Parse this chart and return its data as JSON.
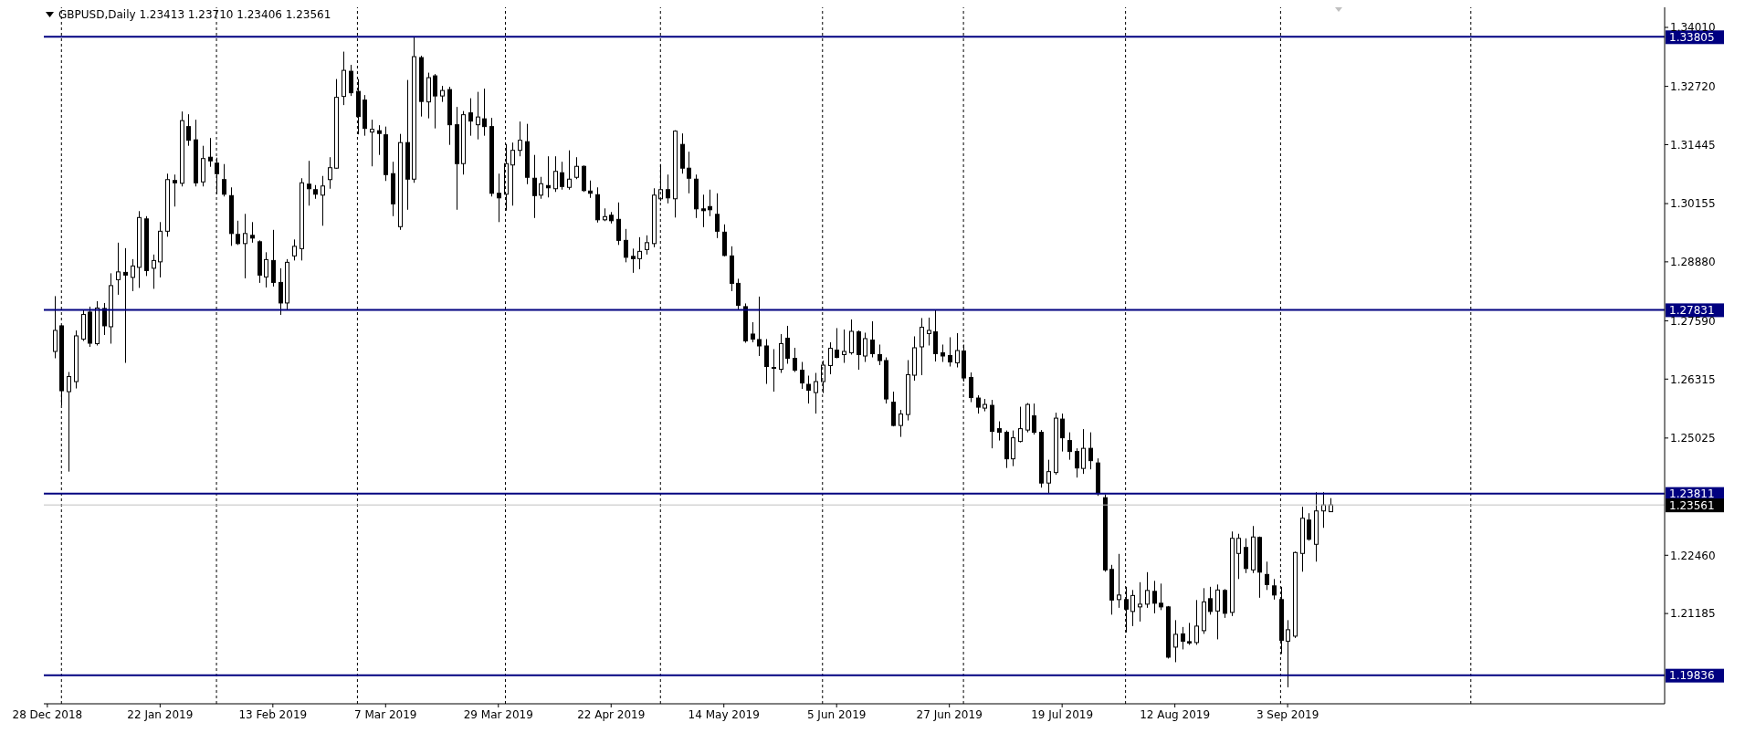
{
  "chart_data": {
    "type": "candlestick",
    "title": "GBPUSD,Daily 1.23413 1.23710 1.23406 1.23561",
    "categories": [
      "28 Dec 2018",
      null,
      null,
      null,
      null,
      null,
      null,
      null,
      null,
      null,
      null,
      null,
      null,
      null,
      null,
      null,
      "22 Jan 2019",
      null,
      null,
      null,
      null,
      null,
      null,
      null,
      null,
      null,
      null,
      null,
      null,
      null,
      null,
      null,
      "13 Feb 2019",
      null,
      null,
      null,
      null,
      null,
      null,
      null,
      null,
      null,
      null,
      null,
      null,
      null,
      null,
      null,
      "7 Mar 2019",
      null,
      null,
      null,
      null,
      null,
      null,
      null,
      null,
      null,
      null,
      null,
      null,
      null,
      null,
      null,
      "29 Mar 2019",
      null,
      null,
      null,
      null,
      null,
      null,
      null,
      null,
      null,
      null,
      null,
      null,
      null,
      null,
      null,
      "22 Apr 2019",
      null,
      null,
      null,
      null,
      null,
      null,
      null,
      null,
      null,
      null,
      null,
      null,
      null,
      null,
      null,
      "14 May 2019",
      null,
      null,
      null,
      null,
      null,
      null,
      null,
      null,
      null,
      null,
      null,
      null,
      null,
      null,
      null,
      "5 Jun 2019",
      null,
      null,
      null,
      null,
      null,
      null,
      null,
      null,
      null,
      null,
      null,
      null,
      null,
      null,
      null,
      "27 Jun 2019",
      null,
      null,
      null,
      null,
      null,
      null,
      null,
      null,
      null,
      null,
      null,
      null,
      null,
      null,
      null,
      "19 Jul 2019",
      null,
      null,
      null,
      null,
      null,
      null,
      null,
      null,
      null,
      null,
      null,
      null,
      null,
      null,
      null,
      "12 Aug 2019",
      null,
      null,
      null,
      null,
      null,
      null,
      null,
      null,
      null,
      null,
      null,
      null,
      null,
      null,
      null,
      "3 Sep 2019",
      null,
      null,
      null,
      null,
      null,
      null,
      null,
      null,
      null,
      null,
      null,
      null,
      null,
      null,
      null,
      null,
      null,
      null,
      null,
      null,
      null,
      null,
      null,
      null,
      null,
      null,
      null,
      null,
      null,
      null,
      null,
      null,
      null,
      null,
      null,
      null,
      null,
      null,
      null,
      null,
      null,
      null,
      null,
      null,
      null,
      null,
      null,
      null,
      null,
      null,
      null,
      null,
      null
    ],
    "ohlc": [
      null,
      [
        1.2692,
        1.2813,
        1.2677,
        1.2738
      ],
      [
        1.2748,
        1.275,
        1.2574,
        1.2606
      ],
      [
        1.2604,
        1.2647,
        1.2429,
        1.2637
      ],
      [
        1.2626,
        1.2738,
        1.2611,
        1.2726
      ],
      [
        1.2719,
        1.2783,
        1.2715,
        1.2773
      ],
      [
        1.2778,
        1.279,
        1.2702,
        1.271
      ],
      [
        1.2709,
        1.2802,
        1.2705,
        1.2787
      ],
      [
        1.2786,
        1.2798,
        1.2728,
        1.2748
      ],
      [
        1.2746,
        1.2863,
        1.2709,
        1.2836
      ],
      [
        1.2849,
        1.293,
        1.2816,
        1.2866
      ],
      [
        1.2865,
        1.2918,
        1.2667,
        1.2859
      ],
      [
        1.2854,
        1.2894,
        1.2824,
        1.2879
      ],
      [
        1.2876,
        1.2999,
        1.2831,
        1.2985
      ],
      [
        1.2982,
        1.2988,
        1.2857,
        1.2869
      ],
      [
        1.2874,
        1.2904,
        1.2829,
        1.2891
      ],
      [
        1.2888,
        1.2975,
        1.2854,
        1.2955
      ],
      [
        1.2955,
        1.3081,
        1.2943,
        1.3068
      ],
      [
        1.3066,
        1.3079,
        1.3009,
        1.3061
      ],
      [
        1.306,
        1.3217,
        1.3053,
        1.3197
      ],
      [
        1.3184,
        1.3211,
        1.3142,
        1.3154
      ],
      [
        1.3155,
        1.3199,
        1.3053,
        1.3061
      ],
      [
        1.3063,
        1.3142,
        1.3053,
        1.3114
      ],
      [
        1.3117,
        1.3159,
        1.3096,
        1.3109
      ],
      [
        1.3104,
        1.3116,
        1.3036,
        1.3081
      ],
      [
        1.3068,
        1.3102,
        1.3031,
        1.3036
      ],
      [
        1.3033,
        1.3051,
        1.2923,
        1.295
      ],
      [
        1.2948,
        1.2978,
        1.2925,
        1.2928
      ],
      [
        1.2928,
        1.2993,
        1.2852,
        1.295
      ],
      [
        1.2946,
        1.2975,
        1.293,
        1.294
      ],
      [
        1.2932,
        1.2935,
        1.2842,
        1.2859
      ],
      [
        1.2855,
        1.2909,
        1.2832,
        1.2893
      ],
      [
        1.2891,
        1.2958,
        1.2834,
        1.2843
      ],
      [
        1.2843,
        1.2874,
        1.2772,
        1.2798
      ],
      [
        1.2798,
        1.2894,
        1.2782,
        1.2887
      ],
      [
        1.2901,
        1.2937,
        1.2891,
        1.2922
      ],
      [
        1.2917,
        1.3071,
        1.2891,
        1.3061
      ],
      [
        1.3058,
        1.3109,
        1.3011,
        1.3048
      ],
      [
        1.3046,
        1.3056,
        1.3026,
        1.3036
      ],
      [
        1.3034,
        1.3076,
        1.2967,
        1.3054
      ],
      [
        1.3068,
        1.3117,
        1.3048,
        1.3094
      ],
      [
        1.3093,
        1.3288,
        1.3092,
        1.3248
      ],
      [
        1.325,
        1.3348,
        1.3231,
        1.3307
      ],
      [
        1.3305,
        1.3319,
        1.3251,
        1.3258
      ],
      [
        1.3261,
        1.3288,
        1.3167,
        1.3206
      ],
      [
        1.3242,
        1.3253,
        1.3164,
        1.318
      ],
      [
        1.3172,
        1.3199,
        1.3097,
        1.3178
      ],
      [
        1.3175,
        1.3187,
        1.3122,
        1.3169
      ],
      [
        1.3166,
        1.3184,
        1.3065,
        1.3079
      ],
      [
        1.3081,
        1.3107,
        1.2988,
        1.3015
      ],
      [
        1.2965,
        1.3168,
        1.2958,
        1.3149
      ],
      [
        1.3149,
        1.3286,
        1.3002,
        1.3069
      ],
      [
        1.3069,
        1.3381,
        1.3061,
        1.3337
      ],
      [
        1.3335,
        1.3339,
        1.3206,
        1.3239
      ],
      [
        1.3238,
        1.3302,
        1.3202,
        1.3291
      ],
      [
        1.3295,
        1.3299,
        1.318,
        1.3251
      ],
      [
        1.3251,
        1.3273,
        1.3238,
        1.3263
      ],
      [
        1.3265,
        1.3271,
        1.3144,
        1.3188
      ],
      [
        1.3188,
        1.3227,
        1.3002,
        1.3103
      ],
      [
        1.3103,
        1.3218,
        1.3079,
        1.321
      ],
      [
        1.3214,
        1.3246,
        1.3164,
        1.3196
      ],
      [
        1.3188,
        1.326,
        1.3156,
        1.3205
      ],
      [
        1.3201,
        1.3267,
        1.3164,
        1.3184
      ],
      [
        1.3184,
        1.3203,
        1.3031,
        1.3038
      ],
      [
        1.3038,
        1.3081,
        1.2975,
        1.3028
      ],
      [
        1.3036,
        1.3146,
        1.3,
        1.3103
      ],
      [
        1.31,
        1.3149,
        1.3011,
        1.3132
      ],
      [
        1.3132,
        1.3195,
        1.3119,
        1.3154
      ],
      [
        1.3151,
        1.319,
        1.3058,
        1.3073
      ],
      [
        1.3071,
        1.3122,
        1.2984,
        1.3033
      ],
      [
        1.3034,
        1.3074,
        1.3026,
        1.3059
      ],
      [
        1.3055,
        1.3119,
        1.3029,
        1.305
      ],
      [
        1.3048,
        1.3119,
        1.3041,
        1.3086
      ],
      [
        1.3083,
        1.3107,
        1.3046,
        1.3053
      ],
      [
        1.3051,
        1.3132,
        1.3046,
        1.3069
      ],
      [
        1.3073,
        1.3117,
        1.3069,
        1.3097
      ],
      [
        1.3097,
        1.3099,
        1.3041,
        1.3044
      ],
      [
        1.3043,
        1.3066,
        1.3028,
        1.3038
      ],
      [
        1.3035,
        1.3051,
        1.2974,
        1.298
      ],
      [
        1.298,
        1.3005,
        1.2977,
        1.2987
      ],
      [
        1.299,
        1.2997,
        1.2972,
        1.2978
      ],
      [
        1.2981,
        1.3018,
        1.2925,
        1.2935
      ],
      [
        1.2935,
        1.296,
        1.2887,
        1.2898
      ],
      [
        1.29,
        1.2917,
        1.2864,
        1.2895
      ],
      [
        1.2895,
        1.2942,
        1.2872,
        1.2911
      ],
      [
        1.2915,
        1.2946,
        1.2904,
        1.293
      ],
      [
        1.2928,
        1.3049,
        1.292,
        1.3034
      ],
      [
        1.3026,
        1.3102,
        1.3021,
        1.3046
      ],
      [
        1.3046,
        1.3079,
        1.3016,
        1.3028
      ],
      [
        1.3026,
        1.3176,
        1.2985,
        1.3174
      ],
      [
        1.3145,
        1.3169,
        1.3081,
        1.3093
      ],
      [
        1.3093,
        1.3129,
        1.3038,
        1.3071
      ],
      [
        1.3069,
        1.3079,
        1.2984,
        1.3004
      ],
      [
        1.3004,
        1.3035,
        1.2964,
        1.3
      ],
      [
        1.3009,
        1.3046,
        1.2988,
        1.3002
      ],
      [
        1.2992,
        1.3038,
        1.294,
        1.2955
      ],
      [
        1.2953,
        1.297,
        1.29,
        1.2902
      ],
      [
        1.2901,
        1.2922,
        1.2824,
        1.2841
      ],
      [
        1.2841,
        1.2851,
        1.2783,
        1.2793
      ],
      [
        1.279,
        1.2797,
        1.2711,
        1.2715
      ],
      [
        1.273,
        1.2756,
        1.2712,
        1.2719
      ],
      [
        1.2718,
        1.2812,
        1.2682,
        1.2704
      ],
      [
        1.2704,
        1.2719,
        1.2621,
        1.2659
      ],
      [
        1.2657,
        1.2697,
        1.2604,
        1.2655
      ],
      [
        1.2653,
        1.273,
        1.2645,
        1.2709
      ],
      [
        1.2721,
        1.2748,
        1.2665,
        1.2677
      ],
      [
        1.2677,
        1.27,
        1.2647,
        1.2651
      ],
      [
        1.2651,
        1.2669,
        1.261,
        1.2623
      ],
      [
        1.262,
        1.2639,
        1.2578,
        1.2607
      ],
      [
        1.2602,
        1.2645,
        1.2556,
        1.2626
      ],
      [
        1.2626,
        1.2672,
        1.2601,
        1.2662
      ],
      [
        1.2661,
        1.2712,
        1.2642,
        1.2699
      ],
      [
        1.2695,
        1.2743,
        1.2677,
        1.2679
      ],
      [
        1.2685,
        1.274,
        1.2667,
        1.2692
      ],
      [
        1.2689,
        1.2762,
        1.2685,
        1.2736
      ],
      [
        1.2735,
        1.2738,
        1.2652,
        1.2685
      ],
      [
        1.2682,
        1.2733,
        1.2669,
        1.272
      ],
      [
        1.2717,
        1.2758,
        1.2679,
        1.2687
      ],
      [
        1.2685,
        1.2707,
        1.2662,
        1.2672
      ],
      [
        1.2672,
        1.2679,
        1.2578,
        1.2588
      ],
      [
        1.2581,
        1.2604,
        1.2528,
        1.253
      ],
      [
        1.253,
        1.2564,
        1.2505,
        1.2555
      ],
      [
        1.2554,
        1.2673,
        1.2541,
        1.2641
      ],
      [
        1.264,
        1.2725,
        1.2628,
        1.27
      ],
      [
        1.2702,
        1.2765,
        1.264,
        1.2745
      ],
      [
        1.2731,
        1.2766,
        1.2705,
        1.2738
      ],
      [
        1.2735,
        1.2783,
        1.267,
        1.2687
      ],
      [
        1.2689,
        1.2707,
        1.2669,
        1.2682
      ],
      [
        1.2683,
        1.2723,
        1.2659,
        1.2669
      ],
      [
        1.2667,
        1.2732,
        1.2657,
        1.2694
      ],
      [
        1.2693,
        1.2707,
        1.2626,
        1.2634
      ],
      [
        1.2635,
        1.2646,
        1.2581,
        1.2591
      ],
      [
        1.259,
        1.2596,
        1.2556,
        1.257
      ],
      [
        1.2568,
        1.2588,
        1.2561,
        1.2576
      ],
      [
        1.2574,
        1.2586,
        1.248,
        1.2517
      ],
      [
        1.2523,
        1.2539,
        1.2497,
        1.2515
      ],
      [
        1.2515,
        1.2519,
        1.2437,
        1.2457
      ],
      [
        1.2457,
        1.2519,
        1.2441,
        1.2503
      ],
      [
        1.2495,
        1.2571,
        1.2493,
        1.2523
      ],
      [
        1.252,
        1.2579,
        1.2515,
        1.2576
      ],
      [
        1.2551,
        1.2578,
        1.251,
        1.2515
      ],
      [
        1.2515,
        1.252,
        1.2394,
        1.2404
      ],
      [
        1.2404,
        1.2455,
        1.2382,
        1.2429
      ],
      [
        1.2427,
        1.2558,
        1.2422,
        1.2546
      ],
      [
        1.2544,
        1.2556,
        1.2473,
        1.2503
      ],
      [
        1.2497,
        1.2515,
        1.2455,
        1.2473
      ],
      [
        1.2473,
        1.248,
        1.2416,
        1.2437
      ],
      [
        1.2436,
        1.2522,
        1.2424,
        1.248
      ],
      [
        1.248,
        1.2515,
        1.2434,
        1.2453
      ],
      [
        1.2448,
        1.2458,
        1.2376,
        1.2381
      ],
      [
        1.2372,
        1.2379,
        1.221,
        1.2214
      ],
      [
        1.2215,
        1.2225,
        1.2116,
        1.2148
      ],
      [
        1.2149,
        1.2249,
        1.2131,
        1.2159
      ],
      [
        1.2149,
        1.2177,
        1.2077,
        1.2128
      ],
      [
        1.2123,
        1.217,
        1.2091,
        1.2158
      ],
      [
        1.2133,
        1.2187,
        1.2101,
        1.2139
      ],
      [
        1.2139,
        1.2209,
        1.2131,
        1.2169
      ],
      [
        1.2167,
        1.219,
        1.2119,
        1.2141
      ],
      [
        1.2141,
        1.2184,
        1.2126,
        1.2133
      ],
      [
        1.2133,
        1.2135,
        1.202,
        1.2023
      ],
      [
        1.2045,
        1.2104,
        1.2012,
        1.2073
      ],
      [
        1.2074,
        1.2089,
        1.204,
        1.2058
      ],
      [
        1.2057,
        1.2098,
        1.205,
        1.2054
      ],
      [
        1.2055,
        1.2148,
        1.205,
        1.2091
      ],
      [
        1.2081,
        1.2174,
        1.2074,
        1.2144
      ],
      [
        1.2151,
        1.2177,
        1.2116,
        1.2123
      ],
      [
        1.2124,
        1.2182,
        1.2062,
        1.217
      ],
      [
        1.2169,
        1.2172,
        1.2109,
        1.2119
      ],
      [
        1.2121,
        1.2298,
        1.2113,
        1.2283
      ],
      [
        1.225,
        1.2293,
        1.2194,
        1.2283
      ],
      [
        1.2263,
        1.2283,
        1.2207,
        1.2217
      ],
      [
        1.2214,
        1.231,
        1.2207,
        1.2286
      ],
      [
        1.2285,
        1.2287,
        1.2153,
        1.2209
      ],
      [
        1.2204,
        1.2232,
        1.217,
        1.2182
      ],
      [
        1.2179,
        1.2194,
        1.2149,
        1.2159
      ],
      [
        1.2149,
        1.2177,
        1.203,
        1.206
      ],
      [
        1.2058,
        1.2104,
        1.1957,
        1.2083
      ],
      [
        1.2069,
        1.2254,
        1.2065,
        1.2252
      ],
      [
        1.225,
        1.2352,
        1.221,
        1.2327
      ],
      [
        1.2323,
        1.2338,
        1.2278,
        1.2281
      ],
      [
        1.227,
        1.2384,
        1.2232,
        1.2343
      ],
      [
        1.2343,
        1.2384,
        1.2306,
        1.2356
      ],
      [
        1.23413,
        1.2371,
        1.23406,
        1.23561
      ],
      null,
      null,
      null,
      null,
      null,
      null,
      null,
      null,
      null,
      null,
      null,
      null,
      null,
      null,
      null,
      null,
      null,
      null,
      null,
      null,
      null,
      null,
      null,
      null,
      null,
      null,
      null,
      null,
      null,
      null,
      null,
      null,
      null,
      null,
      null,
      null,
      null,
      null,
      null,
      null,
      null,
      null,
      null,
      null,
      null,
      null,
      null
    ],
    "ylim": [
      1.1921,
      1.3445
    ],
    "yticks": [
      {
        "value": 1.3401,
        "label": "1.34010"
      },
      {
        "value": 1.3272,
        "label": "1.32720"
      },
      1.31445,
      1.30155,
      {
        "value": 1.2888,
        "label": "1.28880"
      },
      {
        "value": 1.2759,
        "label": "1.27590"
      },
      1.26315,
      1.25025,
      {
        "value": 1.2246,
        "label": "1.22460"
      },
      1.21185
    ],
    "ref_lines": [
      {
        "axis": "y",
        "value": 1.33805,
        "label": "1.33805",
        "color": "#000080"
      },
      {
        "axis": "y",
        "value": 1.27831,
        "label": "1.27831",
        "color": "#000080"
      },
      {
        "axis": "y",
        "value": 1.23811,
        "label": "1.23811",
        "color": "#000080"
      },
      {
        "axis": "y",
        "value": 1.19836,
        "label": "1.19836",
        "color": "#000080"
      },
      {
        "axis": "y",
        "value": 1.23561,
        "label": "1.23561",
        "color": "#c0c0c0"
      }
    ]
  }
}
